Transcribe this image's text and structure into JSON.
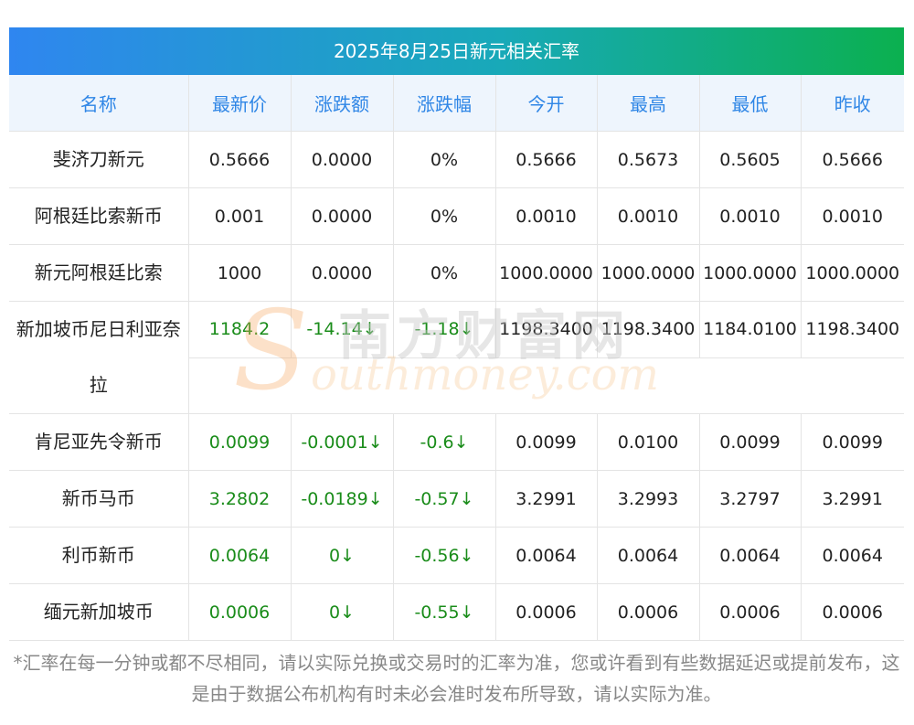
{
  "title": "2025年8月25日新元相关汇率",
  "headers": [
    "名称",
    "最新价",
    "涨跌额",
    "涨跌幅",
    "今开",
    "最高",
    "最低",
    "昨收"
  ],
  "rows": [
    {
      "name": "斐济刀新元",
      "latest": "0.5666",
      "change": "0.0000",
      "pct": "0%",
      "open": "0.5666",
      "high": "0.5673",
      "low": "0.5605",
      "prev": "0.5666",
      "down": false
    },
    {
      "name": "阿根廷比索新币",
      "latest": "0.001",
      "change": "0.0000",
      "pct": "0%",
      "open": "0.0010",
      "high": "0.0010",
      "low": "0.0010",
      "prev": "0.0010",
      "down": false
    },
    {
      "name": "新元阿根廷比索",
      "latest": "1000",
      "change": "0.0000",
      "pct": "0%",
      "open": "1000.0000",
      "high": "1000.0000",
      "low": "1000.0000",
      "prev": "1000.0000",
      "down": false
    },
    {
      "name": "新加坡币尼日利亚奈拉",
      "latest": "1184.2",
      "change": "-14.14↓",
      "pct": "-1.18↓",
      "open": "1198.3400",
      "high": "1198.3400",
      "low": "1184.0100",
      "prev": "1198.3400",
      "down": true
    },
    {
      "name": "肯尼亚先令新币",
      "latest": "0.0099",
      "change": "-0.0001↓",
      "pct": "-0.6↓",
      "open": "0.0099",
      "high": "0.0100",
      "low": "0.0099",
      "prev": "0.0099",
      "down": true
    },
    {
      "name": "新币马币",
      "latest": "3.2802",
      "change": "-0.0189↓",
      "pct": "-0.57↓",
      "open": "3.2991",
      "high": "3.2993",
      "low": "3.2797",
      "prev": "3.2991",
      "down": true
    },
    {
      "name": "利币新币",
      "latest": "0.0064",
      "change": "0↓",
      "pct": "-0.56↓",
      "open": "0.0064",
      "high": "0.0064",
      "low": "0.0064",
      "prev": "0.0064",
      "down": true
    },
    {
      "name": "缅元新加坡币",
      "latest": "0.0006",
      "change": "0↓",
      "pct": "-0.55↓",
      "open": "0.0006",
      "high": "0.0006",
      "low": "0.0006",
      "prev": "0.0006",
      "down": true
    }
  ],
  "note": "*汇率在每一分钟或都不尽相同，请以实际兑换或交易时的汇率为准，您或许看到有些数据延迟或提前发布，这是由于数据公布机构有时未必会准时发布所导致，请以实际为准。",
  "watermark": {
    "cn": "南方财富网",
    "en": "outhmoney.com",
    "s": "S"
  },
  "colors": {
    "header_text": "#2f86e6",
    "down": "#1a8c1a",
    "title_from": "#2f86f0",
    "title_to": "#0bb04f"
  }
}
